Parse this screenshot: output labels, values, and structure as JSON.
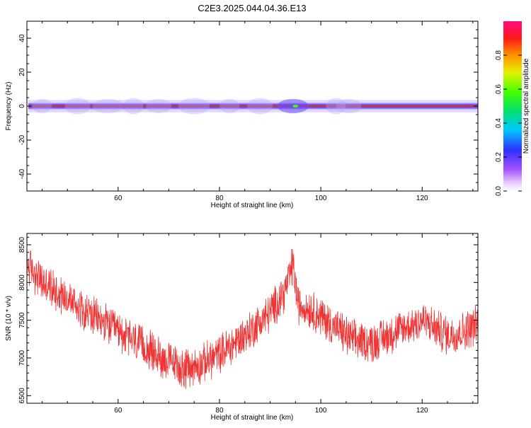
{
  "figure": {
    "title": "C2E3.2025.044.04.36.E13"
  },
  "chart_data": [
    {
      "type": "heatmap",
      "xlabel": "Height of straight line (km)",
      "ylabel": "Frequency (Hz)",
      "xlim": [
        42,
        131
      ],
      "ylim": [
        -50,
        50
      ],
      "xticks": [
        60,
        80,
        100,
        120
      ],
      "yticks": [
        -40,
        -20,
        0,
        20,
        40
      ],
      "band_center_hz": 0,
      "band_halfwidth_hz": 1.5,
      "colorbar": {
        "label": "Normalized spectral amplitude",
        "range": [
          0.0,
          1.0
        ],
        "ticks": [
          0.0,
          0.2,
          0.4,
          0.6,
          0.8
        ]
      },
      "grid": false
    },
    {
      "type": "line",
      "xlabel": "Height of straight line (km)",
      "ylabel": "SNR (10 * v/v)",
      "xlim": [
        42,
        131
      ],
      "ylim": [
        6400,
        8650
      ],
      "xticks": [
        60,
        80,
        100,
        120
      ],
      "yticks": [
        6500,
        7000,
        7500,
        8000,
        8500
      ],
      "color": "#f03232",
      "trend_x": [
        42,
        45,
        50,
        55,
        60,
        65,
        70,
        73,
        76,
        80,
        85,
        90,
        93,
        94.5,
        95.5,
        98,
        102,
        106,
        110,
        115,
        120,
        125,
        128,
        131
      ],
      "trend_y": [
        8250,
        8000,
        7800,
        7550,
        7350,
        7150,
        6950,
        6850,
        6900,
        7050,
        7300,
        7600,
        7900,
        8250,
        7700,
        7650,
        7450,
        7250,
        7200,
        7350,
        7500,
        7300,
        7350,
        7450
      ],
      "grid": false
    }
  ],
  "colors": {
    "background": "#ffffff",
    "axis": "#000000",
    "snr_line": "#f03232"
  }
}
